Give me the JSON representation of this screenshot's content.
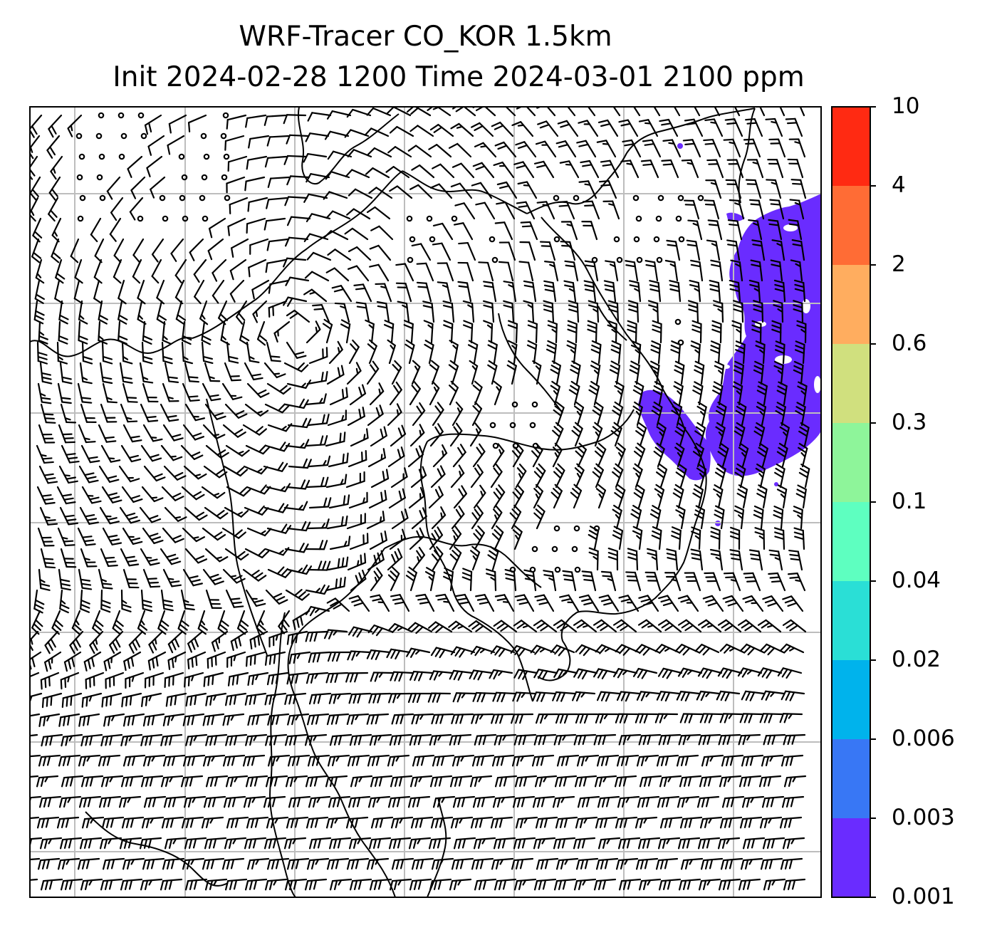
{
  "title": {
    "line1": "WRF-Tracer CO_KOR 1.5km",
    "line2": "Init 2024-02-28 1200 Time 2024-03-01 2100 ppm"
  },
  "colorbar": {
    "ticks": [
      "10",
      "4",
      "2",
      "0.6",
      "0.3",
      "0.1",
      "0.04",
      "0.02",
      "0.006",
      "0.003",
      "0.001"
    ],
    "colors": [
      "#ff2a12",
      "#ff6c35",
      "#ffad5f",
      "#d0e07e",
      "#8ef59a",
      "#5effc0",
      "#2adfd6",
      "#00b3ec",
      "#3877f5",
      "#6a2cff"
    ]
  },
  "plume_color": "#6a2cff",
  "map_style": {
    "gridline_color": "#bdbdbd",
    "coastline_color": "#000000",
    "barb_color": "#000000"
  }
}
